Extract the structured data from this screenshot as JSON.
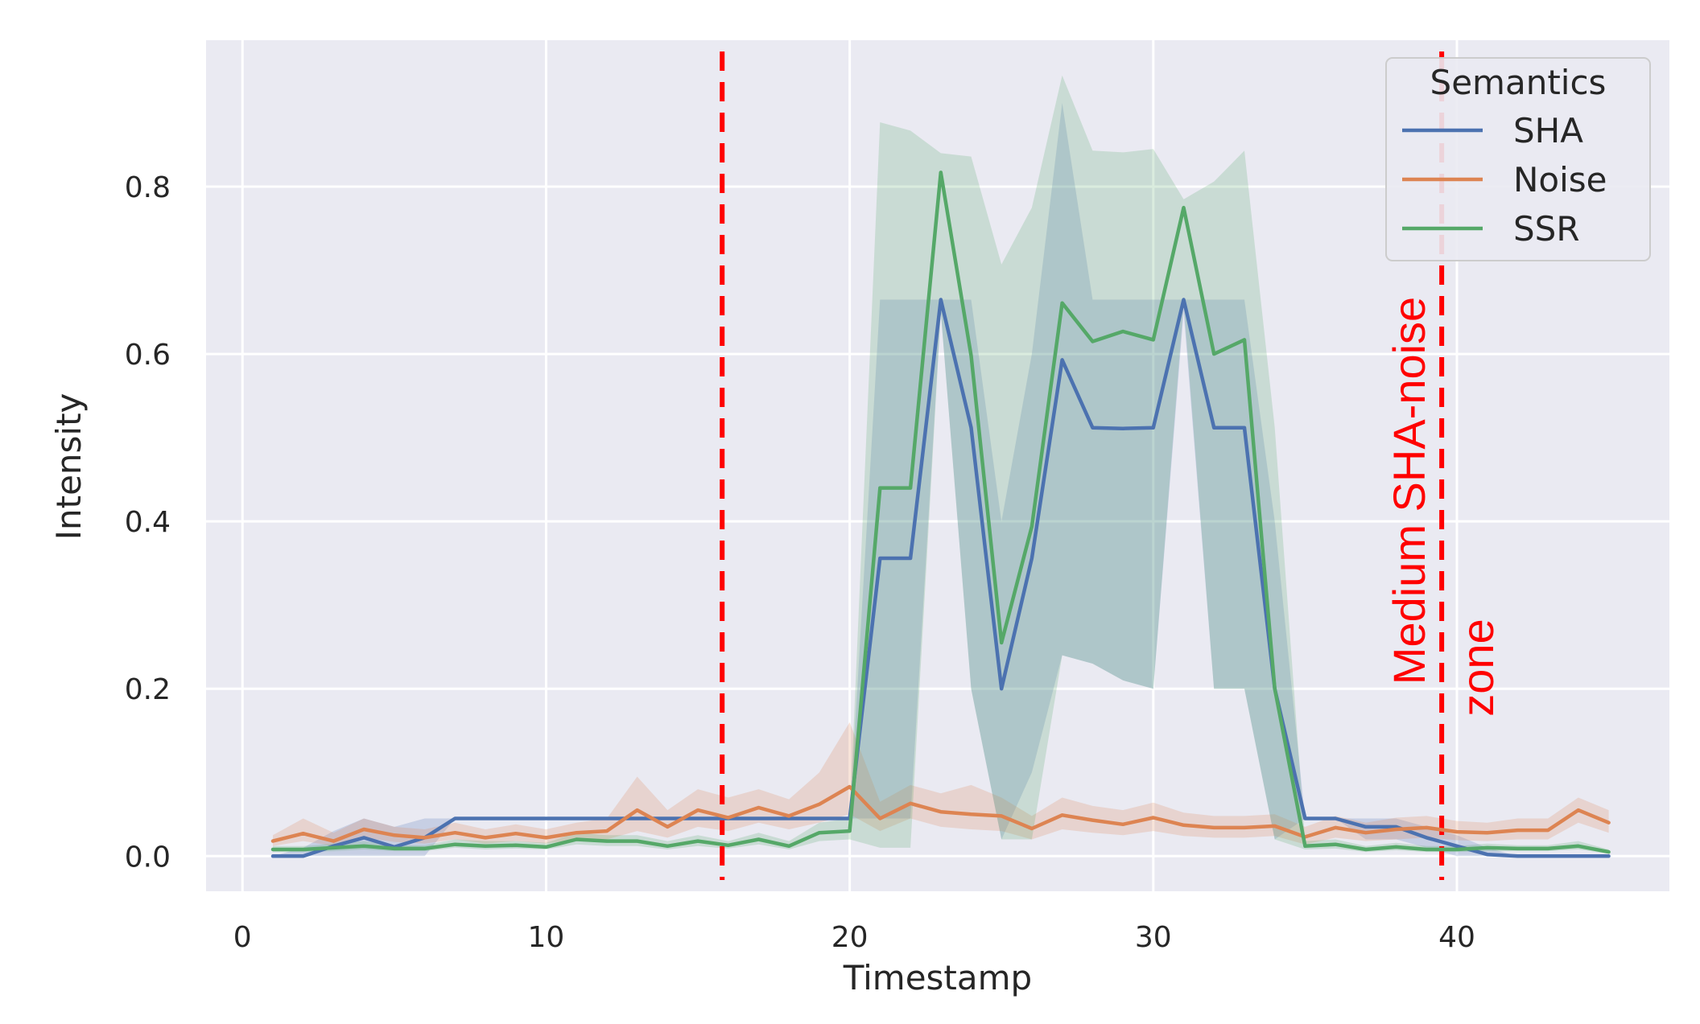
{
  "chart_data": {
    "type": "line",
    "xlabel": "Timestamp",
    "ylabel": "Intensity",
    "xlim": [
      -1.2,
      47
    ],
    "ylim": [
      -0.042,
      0.975
    ],
    "x_ticks": [
      0,
      10,
      20,
      30,
      40
    ],
    "x_tick_labels": [
      "0",
      "10",
      "20",
      "30",
      "40"
    ],
    "y_ticks": [
      0.0,
      0.2,
      0.4,
      0.6,
      0.8
    ],
    "y_tick_labels": [
      "0.0",
      "0.2",
      "0.4",
      "0.6",
      "0.8"
    ],
    "grid": true,
    "legend": {
      "title": "Semantics",
      "placement": "top-right"
    },
    "x": [
      1,
      2,
      3,
      4,
      5,
      6,
      7,
      8,
      9,
      10,
      11,
      12,
      13,
      14,
      15,
      16,
      17,
      18,
      19,
      20,
      21,
      22,
      23,
      24,
      25,
      26,
      27,
      28,
      29,
      30,
      31,
      32,
      33,
      34,
      35,
      36,
      37,
      38,
      39,
      40,
      41,
      42,
      43,
      44,
      45
    ],
    "series": [
      {
        "name": "SHA",
        "color": "#4c72b0",
        "values": [
          0.0,
          0.0,
          0.012,
          0.022,
          0.011,
          0.022,
          0.045,
          0.045,
          0.045,
          0.045,
          0.045,
          0.045,
          0.045,
          0.045,
          0.045,
          0.045,
          0.045,
          0.045,
          0.045,
          0.045,
          0.356,
          0.356,
          0.665,
          0.512,
          0.2,
          0.356,
          0.593,
          0.512,
          0.511,
          0.512,
          0.665,
          0.512,
          0.512,
          0.2,
          0.045,
          0.045,
          0.035,
          0.035,
          0.022,
          0.012,
          0.002,
          0.0,
          0.0,
          0.0,
          0.0
        ],
        "lower": [
          0.0,
          0.0,
          0.0,
          0.0,
          0.0,
          0.0,
          0.045,
          0.045,
          0.045,
          0.045,
          0.045,
          0.045,
          0.045,
          0.045,
          0.045,
          0.045,
          0.045,
          0.045,
          0.045,
          0.045,
          0.045,
          0.045,
          0.65,
          0.2,
          0.02,
          0.1,
          0.24,
          0.23,
          0.21,
          0.2,
          0.65,
          0.2,
          0.2,
          0.02,
          0.045,
          0.045,
          0.02,
          0.02,
          0.01,
          0.0,
          0.0,
          0.0,
          0.0,
          0.0,
          0.0
        ],
        "upper": [
          0.0,
          0.01,
          0.03,
          0.045,
          0.035,
          0.045,
          0.045,
          0.045,
          0.045,
          0.045,
          0.045,
          0.045,
          0.045,
          0.045,
          0.045,
          0.045,
          0.045,
          0.045,
          0.045,
          0.045,
          0.665,
          0.665,
          0.665,
          0.665,
          0.4,
          0.6,
          0.9,
          0.665,
          0.665,
          0.665,
          0.665,
          0.665,
          0.665,
          0.4,
          0.045,
          0.045,
          0.045,
          0.045,
          0.035,
          0.025,
          0.01,
          0.0,
          0.0,
          0.0,
          0.0
        ]
      },
      {
        "name": "Noise",
        "color": "#dd8452",
        "values": [
          0.018,
          0.027,
          0.018,
          0.032,
          0.025,
          0.022,
          0.028,
          0.022,
          0.027,
          0.022,
          0.028,
          0.03,
          0.055,
          0.035,
          0.055,
          0.046,
          0.058,
          0.048,
          0.062,
          0.083,
          0.045,
          0.063,
          0.053,
          0.05,
          0.048,
          0.033,
          0.049,
          0.043,
          0.038,
          0.046,
          0.037,
          0.034,
          0.034,
          0.036,
          0.023,
          0.034,
          0.028,
          0.032,
          0.034,
          0.029,
          0.028,
          0.031,
          0.031,
          0.055,
          0.04
        ],
        "lower": [
          0.012,
          0.018,
          0.012,
          0.022,
          0.017,
          0.015,
          0.02,
          0.015,
          0.018,
          0.015,
          0.02,
          0.02,
          0.03,
          0.022,
          0.035,
          0.03,
          0.04,
          0.032,
          0.04,
          0.05,
          0.03,
          0.045,
          0.035,
          0.032,
          0.03,
          0.02,
          0.032,
          0.028,
          0.025,
          0.03,
          0.024,
          0.022,
          0.022,
          0.024,
          0.014,
          0.022,
          0.018,
          0.02,
          0.022,
          0.019,
          0.018,
          0.02,
          0.02,
          0.04,
          0.028
        ],
        "upper": [
          0.025,
          0.045,
          0.028,
          0.045,
          0.035,
          0.032,
          0.04,
          0.032,
          0.038,
          0.032,
          0.04,
          0.045,
          0.095,
          0.055,
          0.08,
          0.07,
          0.08,
          0.068,
          0.1,
          0.16,
          0.065,
          0.085,
          0.075,
          0.085,
          0.07,
          0.048,
          0.07,
          0.06,
          0.055,
          0.064,
          0.052,
          0.048,
          0.048,
          0.05,
          0.035,
          0.048,
          0.04,
          0.046,
          0.048,
          0.042,
          0.04,
          0.045,
          0.045,
          0.07,
          0.055
        ]
      },
      {
        "name": "SSR",
        "color": "#55a868",
        "values": [
          0.008,
          0.008,
          0.01,
          0.012,
          0.009,
          0.009,
          0.014,
          0.012,
          0.013,
          0.011,
          0.02,
          0.018,
          0.018,
          0.012,
          0.018,
          0.013,
          0.02,
          0.012,
          0.028,
          0.03,
          0.44,
          0.44,
          0.817,
          0.598,
          0.255,
          0.394,
          0.661,
          0.615,
          0.627,
          0.617,
          0.775,
          0.6,
          0.617,
          0.2,
          0.012,
          0.014,
          0.008,
          0.011,
          0.008,
          0.008,
          0.01,
          0.009,
          0.009,
          0.012,
          0.005
        ],
        "lower": [
          0.005,
          0.005,
          0.006,
          0.008,
          0.006,
          0.006,
          0.01,
          0.008,
          0.009,
          0.008,
          0.014,
          0.012,
          0.012,
          0.008,
          0.012,
          0.009,
          0.014,
          0.008,
          0.018,
          0.02,
          0.01,
          0.01,
          0.65,
          0.2,
          0.02,
          0.02,
          0.24,
          0.23,
          0.21,
          0.2,
          0.66,
          0.2,
          0.2,
          0.02,
          0.008,
          0.009,
          0.005,
          0.007,
          0.005,
          0.005,
          0.006,
          0.006,
          0.006,
          0.008,
          0.003
        ],
        "upper": [
          0.012,
          0.012,
          0.015,
          0.018,
          0.013,
          0.013,
          0.02,
          0.018,
          0.018,
          0.016,
          0.028,
          0.025,
          0.025,
          0.018,
          0.025,
          0.018,
          0.028,
          0.018,
          0.04,
          0.045,
          0.877,
          0.867,
          0.84,
          0.836,
          0.707,
          0.775,
          0.933,
          0.843,
          0.841,
          0.845,
          0.785,
          0.806,
          0.843,
          0.512,
          0.018,
          0.02,
          0.012,
          0.016,
          0.012,
          0.012,
          0.015,
          0.013,
          0.013,
          0.018,
          0.008
        ]
      }
    ],
    "vlines": [
      {
        "x": 15.8,
        "color": "#ff0000",
        "style": "dashed"
      },
      {
        "x": 39.5,
        "color": "#ff0000",
        "style": "dashed"
      }
    ],
    "annotations": [
      {
        "text": "Medium SHA-noise",
        "color": "#ff0000"
      },
      {
        "text": "zone",
        "color": "#ff0000"
      }
    ]
  }
}
